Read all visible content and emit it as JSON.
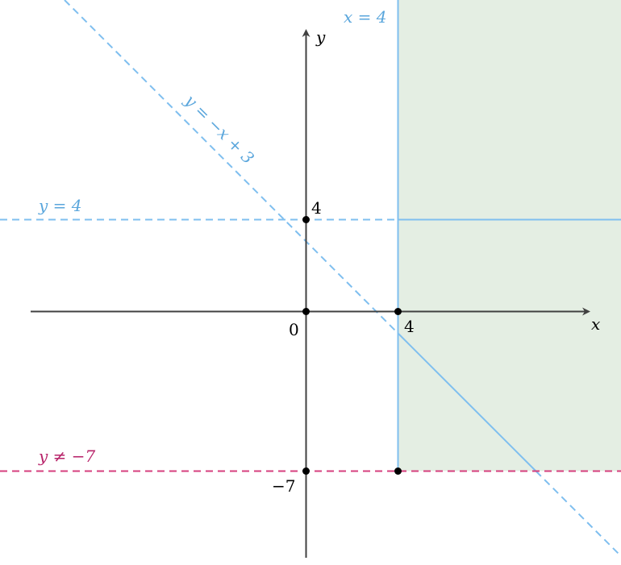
{
  "colors": {
    "region_fill": "#e4eee3",
    "boundary_blue": "#7fbfef",
    "label_blue": "#5aa6dc",
    "boundary_pink": "#d63f7e",
    "label_pink": "#b8246a",
    "axis": "#404040",
    "point": "#000000"
  },
  "axes": {
    "x_label": "x",
    "y_label": "y",
    "origin_label": "0"
  },
  "ticks": {
    "x_four": "4",
    "y_four": "4",
    "y_minus_seven": "−7"
  },
  "lines": {
    "vertical": {
      "label": "x = 4",
      "x": 4
    },
    "horizontal_top": {
      "label": "y = 4",
      "y": 4
    },
    "diagonal": {
      "label": "y = −x + 3",
      "slope": -1,
      "intercept": 3
    },
    "horizontal_bottom": {
      "label": "y ≠ −7",
      "y": -7
    }
  },
  "points": [
    {
      "x": 0,
      "y": 0
    },
    {
      "x": 4,
      "y": 0
    },
    {
      "x": 0,
      "y": 4
    },
    {
      "x": 0,
      "y": -7
    },
    {
      "x": 4,
      "y": -7
    }
  ]
}
